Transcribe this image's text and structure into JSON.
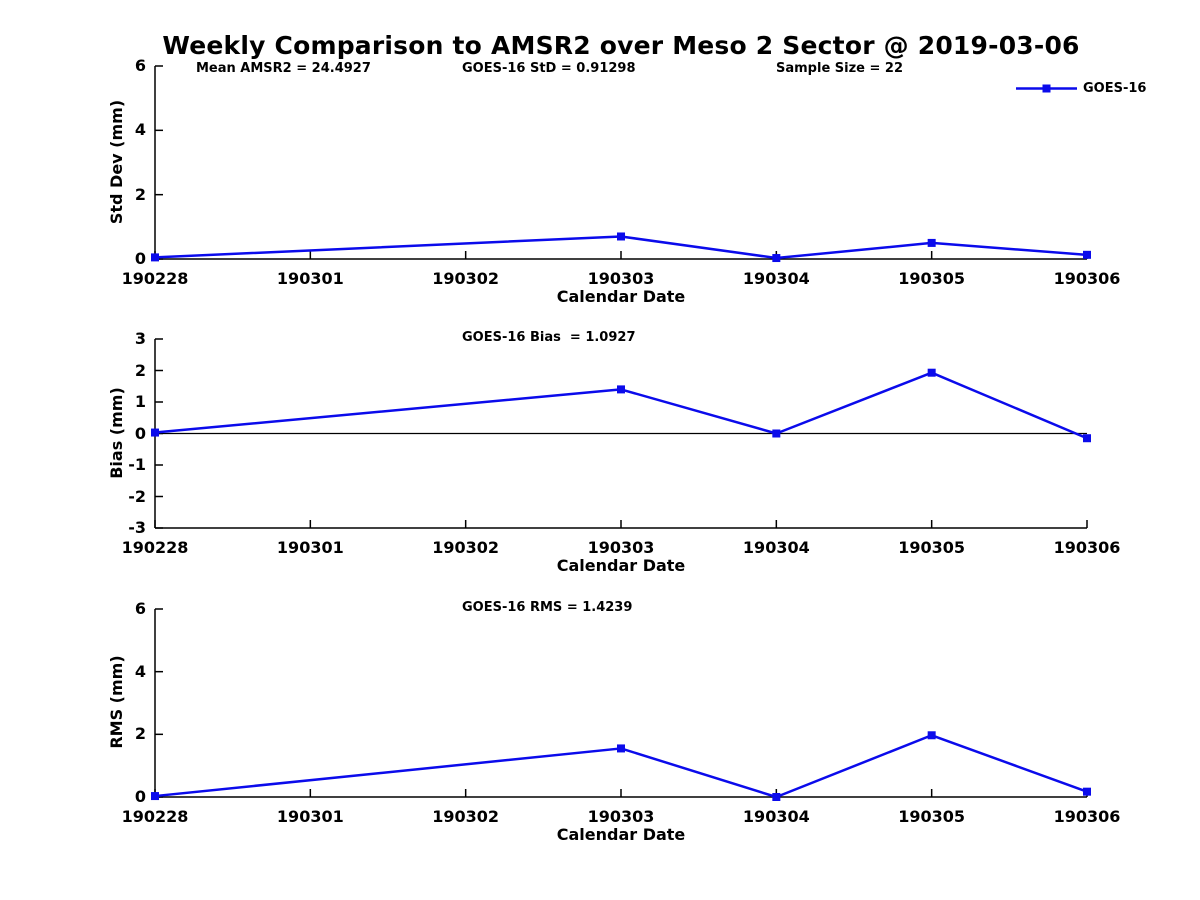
{
  "title": "Weekly Comparison to AMSR2 over Meso 2 Sector @ 2019-03-06",
  "colors": {
    "series": "#0b0beb",
    "axis": "#000000",
    "text": "#000000",
    "background": "#ffffff"
  },
  "legend": {
    "label": "GOES-16",
    "position": "top-right"
  },
  "chart_data": [
    {
      "type": "line",
      "panel": "std-dev",
      "ylabel": "Std Dev (mm)",
      "xlabel": "Calendar Date",
      "ylim": [
        0,
        6
      ],
      "yticks": [
        0,
        2,
        4,
        6
      ],
      "categories": [
        "190228",
        "190301",
        "190302",
        "190303",
        "190304",
        "190305",
        "190306"
      ],
      "annotations": [
        "Mean AMSR2 = 24.4927",
        "GOES-16 StD = 0.91298",
        "Sample Size = 22"
      ],
      "grid": false,
      "zero_line": false,
      "series": [
        {
          "name": "GOES-16",
          "marker": "square",
          "x": [
            "190228",
            "190303",
            "190304",
            "190305",
            "190306"
          ],
          "values": [
            0.05,
            0.7,
            0.03,
            0.5,
            0.13
          ]
        }
      ]
    },
    {
      "type": "line",
      "panel": "bias",
      "ylabel": "Bias (mm)",
      "xlabel": "Calendar Date",
      "ylim": [
        -3,
        3
      ],
      "yticks": [
        3,
        2,
        1,
        0,
        -1,
        -2,
        -3
      ],
      "categories": [
        "190228",
        "190301",
        "190302",
        "190303",
        "190304",
        "190305",
        "190306"
      ],
      "annotations": [
        "GOES-16 Bias  = 1.0927"
      ],
      "grid": false,
      "zero_line": true,
      "series": [
        {
          "name": "GOES-16",
          "marker": "square",
          "x": [
            "190228",
            "190303",
            "190304",
            "190305",
            "190306"
          ],
          "values": [
            0.03,
            1.4,
            0.0,
            1.93,
            -0.15
          ]
        }
      ]
    },
    {
      "type": "line",
      "panel": "rms",
      "ylabel": "RMS (mm)",
      "xlabel": "Calendar Date",
      "ylim": [
        0,
        6
      ],
      "yticks": [
        0,
        2,
        4,
        6
      ],
      "categories": [
        "190228",
        "190301",
        "190302",
        "190303",
        "190304",
        "190305",
        "190306"
      ],
      "annotations": [
        "GOES-16 RMS = 1.4239"
      ],
      "grid": false,
      "zero_line": false,
      "series": [
        {
          "name": "GOES-16",
          "marker": "square",
          "x": [
            "190228",
            "190303",
            "190304",
            "190305",
            "190306"
          ],
          "values": [
            0.03,
            1.55,
            0.0,
            1.97,
            0.17
          ]
        }
      ]
    }
  ]
}
